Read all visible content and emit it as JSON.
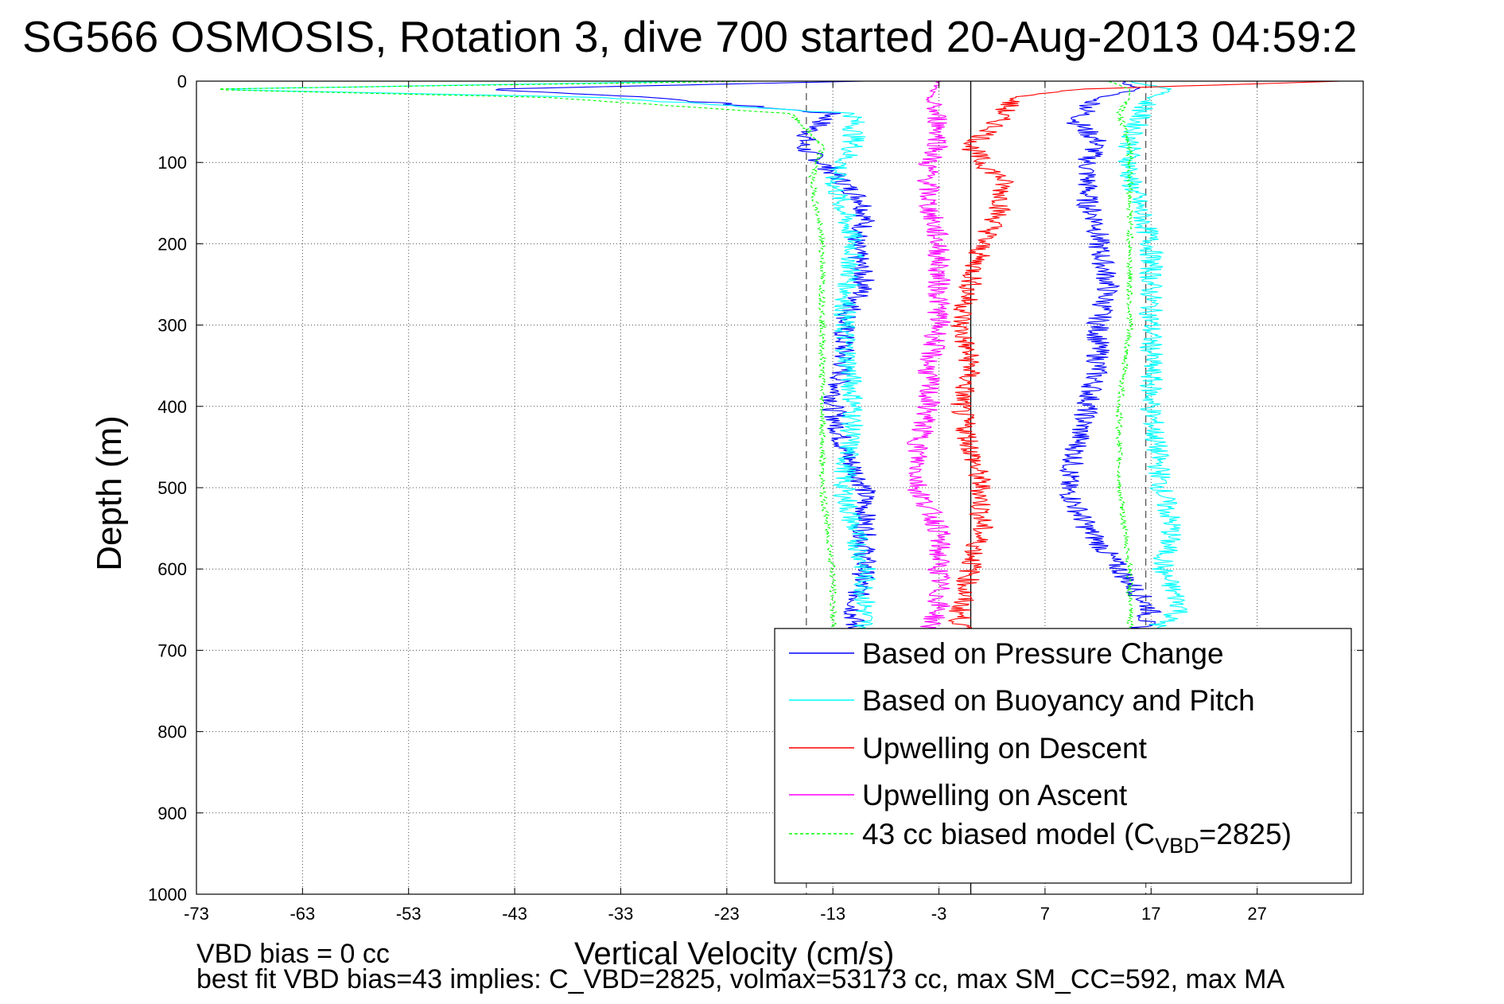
{
  "title": "SG566 OSMOSIS, Rotation 3, dive 700 started 20-Aug-2013 04:59:2",
  "footer": {
    "line1": "VBD bias = 0 cc",
    "line2": "best fit VBD bias=43 implies: C_VBD=2825, volmax=53173 cc, max SM_CC=592, max MA"
  },
  "colors": {
    "pressure": "#0000ff",
    "buoyancy": "#00ffff",
    "up_descent": "#ff0000",
    "up_ascent": "#ff00ff",
    "model": "#00ff00"
  },
  "chart_data": {
    "type": "line",
    "title": "SG566 OSMOSIS, Rotation 3, dive 700 started 20-Aug-2013 04:59:2",
    "xlabel": "Vertical Velocity (cm/s)",
    "ylabel": "Depth (m)",
    "xlim": [
      -73,
      37
    ],
    "ylim": [
      0,
      1000
    ],
    "y_reversed": true,
    "grid": true,
    "x_ticks": [
      -73,
      -63,
      -53,
      -43,
      -33,
      -23,
      -13,
      -3,
      7,
      17,
      27
    ],
    "y_ticks": [
      0,
      100,
      200,
      300,
      400,
      500,
      600,
      700,
      800,
      900,
      1000
    ],
    "vertical_reference_lines": [
      {
        "x": -15.5,
        "style": "dashed"
      },
      {
        "x": 0,
        "style": "solid"
      },
      {
        "x": 16.5,
        "style": "dashed"
      }
    ],
    "legend": {
      "placement": "bottom-right",
      "entries": [
        "Based on Pressure Change",
        "Based on Buoyancy and Pitch",
        "Upwelling on Descent",
        "Upwelling on Ascent",
        "43 cc biased model (C"
      ],
      "model_subscript": "VBD",
      "model_suffix": "=2825)"
    },
    "series": [
      {
        "name": "Based on Pressure Change",
        "color": "#0000ff",
        "style": "solid",
        "descent": {
          "depth": [
            0,
            10,
            20,
            40,
            60,
            80,
            100,
            125,
            150,
            175,
            200,
            250,
            300,
            350,
            400,
            450,
            500,
            550,
            600,
            650,
            700
          ],
          "velocity": [
            -10,
            -46,
            -30,
            -13,
            -15,
            -16,
            -14,
            -12,
            -10,
            -10,
            -11,
            -10,
            -12,
            -12,
            -13,
            -12,
            -10,
            -10,
            -10,
            -11,
            -11
          ]
        },
        "ascent": {
          "depth": [
            0,
            10,
            20,
            50,
            75,
            100,
            125,
            150,
            175,
            200,
            250,
            300,
            350,
            400,
            450,
            500,
            550,
            600,
            650,
            675
          ],
          "velocity": [
            14,
            16,
            12,
            10,
            12,
            11,
            11,
            11,
            12,
            12,
            13,
            12,
            12,
            11,
            10,
            9,
            11,
            14,
            17,
            16
          ]
        }
      },
      {
        "name": "Based on Buoyancy and Pitch",
        "color": "#00ffff",
        "style": "solid",
        "descent": {
          "depth": [
            0,
            10,
            20,
            40,
            80,
            120,
            200,
            300,
            400,
            500,
            600,
            700
          ],
          "velocity": [
            -25,
            -72,
            -35,
            -11,
            -11,
            -13,
            -11,
            -12,
            -11,
            -12,
            -10,
            -10
          ]
        },
        "ascent": {
          "depth": [
            0,
            10,
            20,
            40,
            80,
            120,
            200,
            300,
            400,
            500,
            550,
            600,
            650,
            675
          ],
          "velocity": [
            15,
            19,
            17,
            16,
            15,
            15,
            17,
            17,
            17,
            18,
            19,
            18,
            20,
            17
          ]
        }
      },
      {
        "name": "Upwelling on Descent",
        "color": "#ff0000",
        "style": "solid",
        "depth": [
          0,
          10,
          20,
          40,
          60,
          80,
          100,
          120,
          150,
          180,
          200,
          250,
          300,
          350,
          400,
          450,
          500,
          550,
          600,
          650,
          700
        ],
        "velocity": [
          35,
          10,
          4,
          3,
          2,
          0,
          1,
          3,
          3,
          2,
          1,
          0,
          -1,
          0,
          -1,
          0,
          1,
          1,
          0,
          -1,
          -1
        ]
      },
      {
        "name": "Upwelling on Ascent",
        "color": "#ff00ff",
        "style": "solid",
        "depth": [
          0,
          20,
          50,
          80,
          100,
          150,
          200,
          250,
          300,
          350,
          400,
          450,
          500,
          550,
          600,
          650,
          675
        ],
        "velocity": [
          -3,
          -4,
          -3,
          -3,
          -4,
          -4,
          -3,
          -3,
          -3,
          -4,
          -4,
          -5,
          -5,
          -3,
          -3,
          -3,
          -4
        ]
      },
      {
        "name": "43 cc biased model (CVBD=2825)",
        "color": "#00ff00",
        "style": "dashed",
        "descent": {
          "depth": [
            0,
            10,
            20,
            40,
            80,
            120,
            200,
            300,
            400,
            500,
            600,
            700
          ],
          "velocity": [
            -20,
            -73,
            -40,
            -17,
            -14,
            -15,
            -14,
            -14,
            -14,
            -14,
            -13,
            -13
          ]
        },
        "ascent": {
          "depth": [
            0,
            10,
            20,
            40,
            80,
            120,
            200,
            300,
            400,
            500,
            600,
            675
          ],
          "velocity": [
            13,
            15,
            15,
            14,
            15,
            15,
            15,
            15,
            14,
            14,
            15,
            15
          ]
        }
      }
    ]
  }
}
